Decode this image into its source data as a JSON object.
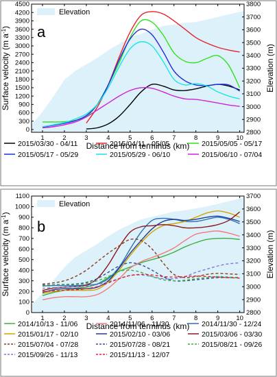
{
  "chart_data": [
    {
      "type": "line",
      "panel_label": "a",
      "xlabel": "Distance from terminus (km)",
      "ylabel_left": "Surface velocity (m a",
      "ylabel_left_sup": "-1",
      "ylabel_left_end": ")",
      "ylabel_right": "Elevation (m)",
      "xlim": [
        0.5,
        10.2
      ],
      "ylim": [
        -100,
        4500
      ],
      "ylim_right": [
        2800,
        3800
      ],
      "x_ticks": [
        1,
        2,
        3,
        4,
        5,
        6,
        7,
        8,
        9,
        10
      ],
      "y_ticks": [
        0,
        300,
        600,
        900,
        1200,
        1500,
        1800,
        2100,
        2400,
        2700,
        3000,
        3300,
        3600,
        3900,
        4200,
        4500
      ],
      "y_ticks_right": [
        2800,
        2900,
        3000,
        3100,
        3200,
        3300,
        3400,
        3500,
        3600,
        3700,
        3800
      ],
      "elevation": {
        "name": "Elevation",
        "color": "#ddf1fa",
        "x": [
          0.5,
          1,
          1.5,
          2,
          2.5,
          3,
          3.5,
          4,
          4.5,
          5,
          5.5,
          6,
          6.5,
          7,
          7.5,
          8,
          8.5,
          9,
          9.5,
          10,
          10.2
        ],
        "values": [
          2860,
          2960,
          3080,
          3210,
          3280,
          3330,
          3380,
          3440,
          3490,
          3540,
          3570,
          3600,
          3630,
          3640,
          3655,
          3660,
          3680,
          3700,
          3720,
          3740,
          3745
        ]
      },
      "series": [
        {
          "name": "2015/03/30 - 04/11",
          "color": "#000000",
          "x": [
            3,
            3.5,
            4,
            4.5,
            5,
            5.5,
            6,
            6.5,
            7,
            7.5,
            8,
            8.5,
            9,
            9.5,
            10
          ],
          "values": [
            20,
            60,
            200,
            480,
            900,
            1350,
            1620,
            1560,
            1420,
            1400,
            1460,
            1560,
            1620,
            1560,
            1420
          ]
        },
        {
          "name": "2015/04/11 - 05/05",
          "color": "#e8202a",
          "x": [
            3,
            3.5,
            4,
            4.5,
            5,
            5.5,
            6,
            6.5,
            7,
            7.5,
            8,
            8.5,
            9,
            9.5,
            10
          ],
          "values": [
            230,
            800,
            1600,
            2600,
            3500,
            4100,
            4230,
            4150,
            3900,
            3600,
            3300,
            3100,
            2950,
            2850,
            2780
          ]
        },
        {
          "name": "2015/05/05 - 05/17",
          "color": "#2fe11e",
          "x": [
            1,
            1.5,
            2,
            2.5,
            3,
            3.5,
            4,
            4.5,
            5,
            5.5,
            6,
            6.5,
            7,
            7.5,
            8,
            8.5,
            9,
            9.5,
            10
          ],
          "values": [
            270,
            270,
            280,
            330,
            460,
            900,
            1600,
            2400,
            3300,
            3900,
            3850,
            3400,
            2750,
            2450,
            2400,
            2550,
            2650,
            2300,
            1500
          ]
        },
        {
          "name": "2015/05/17 - 05/29",
          "color": "#1f2be5",
          "x": [
            1,
            1.5,
            2,
            2.5,
            3,
            3.5,
            4,
            4.5,
            5,
            5.5,
            6,
            6.5,
            7,
            7.5,
            8,
            8.5,
            9,
            9.5,
            10
          ],
          "values": [
            90,
            150,
            220,
            320,
            500,
            900,
            1600,
            2500,
            3250,
            3600,
            3400,
            2800,
            2100,
            1750,
            1600,
            1580,
            1620,
            1600,
            1380
          ]
        },
        {
          "name": "2015/05/29 - 06/10",
          "color": "#18e6e0",
          "x": [
            1,
            1.5,
            2,
            2.5,
            3,
            3.5,
            4,
            4.5,
            5,
            5.5,
            6,
            6.5,
            7,
            7.5,
            8,
            8.5,
            9,
            9.5,
            10
          ],
          "values": [
            100,
            170,
            250,
            380,
            560,
            900,
            1500,
            2250,
            2900,
            3150,
            3000,
            2450,
            1800,
            1600,
            1650,
            1560,
            1350,
            1200,
            1100
          ]
        },
        {
          "name": "2015/06/10 - 07/04",
          "color": "#d020d8",
          "x": [
            1,
            1.5,
            2,
            2.5,
            3,
            3.5,
            4,
            4.5,
            5,
            5.5,
            6,
            6.5,
            7,
            7.5,
            8,
            8.5,
            9,
            9.5,
            10
          ],
          "values": [
            60,
            100,
            170,
            270,
            450,
            700,
            950,
            1200,
            1400,
            1500,
            1480,
            1350,
            1200,
            1100,
            1080,
            1020,
            950,
            880,
            830
          ]
        }
      ]
    },
    {
      "type": "line",
      "panel_label": "b",
      "xlabel": "Distance from terminus (km)",
      "ylabel_left": "Surface velocity (m a",
      "ylabel_left_sup": "-1",
      "ylabel_left_end": ")",
      "ylabel_right": "Elevation (m)",
      "xlim": [
        0.5,
        10.2
      ],
      "ylim": [
        0,
        1100
      ],
      "ylim_right": [
        2800,
        3700
      ],
      "x_ticks": [
        1,
        2,
        3,
        4,
        5,
        6,
        7,
        8,
        9,
        10
      ],
      "y_ticks": [
        0,
        100,
        200,
        300,
        400,
        500,
        600,
        700,
        800,
        900,
        1000,
        1100
      ],
      "y_ticks_right": [
        2800,
        2900,
        3000,
        3100,
        3200,
        3300,
        3400,
        3500,
        3600,
        3700
      ],
      "elevation": {
        "name": "Elevation",
        "color": "#ddf1fa",
        "x": [
          0.5,
          1,
          1.5,
          2,
          2.5,
          3,
          3.5,
          4,
          4.5,
          5,
          5.5,
          6,
          6.5,
          7,
          7.5,
          8,
          8.5,
          9,
          9.5,
          10,
          10.2
        ],
        "values": [
          2860,
          2950,
          3050,
          3150,
          3230,
          3280,
          3330,
          3390,
          3440,
          3480,
          3520,
          3540,
          3560,
          3580,
          3590,
          3605,
          3620,
          3640,
          3660,
          3680,
          3690
        ]
      },
      "series": [
        {
          "name": "2014/10/13 - 11/06",
          "color": "#3fae3f",
          "dash": false,
          "x": [
            1,
            1.5,
            2,
            2.5,
            3,
            3.5,
            4,
            4.5,
            5,
            5.5,
            6,
            6.5,
            7,
            7.5,
            8,
            8.5,
            9,
            9.5,
            10
          ],
          "values": [
            160,
            190,
            210,
            230,
            240,
            270,
            330,
            390,
            430,
            470,
            500,
            530,
            570,
            620,
            660,
            690,
            700,
            700,
            690
          ]
        },
        {
          "name": "2014/11/06 - 11/30",
          "color": "#f07a7a",
          "dash": false,
          "x": [
            1,
            1.5,
            2,
            2.5,
            3,
            3.5,
            4,
            4.5,
            5,
            5.5,
            6,
            6.5,
            7,
            7.5,
            8,
            8.5,
            9,
            9.5,
            10
          ],
          "values": [
            120,
            140,
            150,
            150,
            150,
            170,
            230,
            320,
            420,
            480,
            520,
            560,
            610,
            680,
            740,
            760,
            770,
            750,
            720
          ]
        },
        {
          "name": "2014/11/30 - 12/24",
          "color": "#2b6fb8",
          "dash": false,
          "x": [
            1,
            1.5,
            2,
            2.5,
            3,
            3.5,
            4,
            4.5,
            5,
            5.5,
            6,
            6.5,
            7,
            7.5,
            8,
            8.5,
            9,
            9.5,
            10
          ],
          "values": [
            250,
            255,
            255,
            255,
            260,
            270,
            320,
            430,
            600,
            760,
            870,
            890,
            880,
            860,
            860,
            880,
            900,
            880,
            840
          ]
        },
        {
          "name": "2015/01/17 - 02/10",
          "color": "#d5a000",
          "dash": false,
          "x": [
            1,
            1.5,
            2,
            2.5,
            3,
            3.5,
            4,
            4.5,
            5,
            5.5,
            6,
            6.5,
            7,
            7.5,
            8,
            8.5,
            9,
            9.5,
            10
          ],
          "values": [
            180,
            200,
            210,
            210,
            210,
            220,
            290,
            400,
            540,
            660,
            760,
            820,
            840,
            860,
            900,
            940,
            960,
            940,
            900
          ]
        },
        {
          "name": "2015/02/10 - 03/06",
          "color": "#1e3d8f",
          "dash": false,
          "x": [
            1,
            1.5,
            2,
            2.5,
            3,
            3.5,
            4,
            4.5,
            5,
            5.5,
            6,
            6.5,
            7,
            7.5,
            8,
            8.5,
            9,
            9.5,
            10
          ],
          "values": [
            190,
            215,
            225,
            225,
            225,
            240,
            300,
            420,
            560,
            680,
            790,
            860,
            880,
            870,
            880,
            900,
            910,
            890,
            860
          ]
        },
        {
          "name": "2015/03/06 - 03/30",
          "color": "#8b1a1a",
          "dash": false,
          "x": [
            1,
            1.5,
            2,
            2.5,
            3,
            3.5,
            4,
            4.5,
            5,
            5.5,
            6,
            6.5,
            7,
            7.5,
            8,
            8.5,
            9,
            9.5,
            10
          ],
          "values": [
            210,
            230,
            240,
            245,
            260,
            320,
            450,
            620,
            760,
            810,
            820,
            830,
            820,
            800,
            800,
            810,
            830,
            870,
            950
          ]
        },
        {
          "name": "2015/07/04 - 07/28",
          "color": "#8b3a1a",
          "dash": true,
          "x": [
            1,
            1.5,
            2,
            2.5,
            3,
            3.5,
            4,
            4.5,
            5,
            5.5,
            6,
            6.5,
            7,
            7.5,
            8,
            8.5,
            9,
            9.5,
            10
          ],
          "values": [
            270,
            280,
            300,
            340,
            400,
            480,
            560,
            630,
            690,
            680,
            600,
            470,
            360,
            330,
            340,
            360,
            370,
            365,
            360
          ]
        },
        {
          "name": "2015/07/28 - 08/21",
          "color": "#2b4f9e",
          "dash": true,
          "x": [
            1,
            1.5,
            2,
            2.5,
            3,
            3.5,
            4,
            4.5,
            5,
            5.5,
            6,
            6.5,
            7,
            7.5,
            8,
            8.5,
            9,
            9.5,
            10
          ],
          "values": [
            260,
            262,
            265,
            270,
            285,
            320,
            380,
            440,
            470,
            450,
            400,
            340,
            300,
            300,
            310,
            320,
            330,
            330,
            330
          ]
        },
        {
          "name": "2015/08/21 - 09/26",
          "color": "#3fae3f",
          "dash": true,
          "x": [
            1,
            1.5,
            2,
            2.5,
            3,
            3.5,
            4,
            4.5,
            5,
            5.5,
            6,
            6.5,
            7,
            7.5,
            8,
            8.5,
            9,
            9.5,
            10
          ],
          "values": [
            255,
            258,
            260,
            265,
            275,
            300,
            340,
            390,
            400,
            380,
            340,
            310,
            300,
            305,
            320,
            330,
            340,
            335,
            330
          ]
        },
        {
          "name": "2015/09/26 - 11/13",
          "color": "#7a7ad8",
          "dash": true,
          "x": [
            1,
            1.5,
            2,
            2.5,
            3,
            3.5,
            4,
            4.5,
            5,
            5.5,
            6,
            6.5,
            7,
            7.5,
            8,
            8.5,
            9,
            9.5,
            10
          ],
          "values": [
            230,
            235,
            240,
            245,
            250,
            265,
            290,
            320,
            350,
            355,
            340,
            320,
            320,
            340,
            380,
            410,
            440,
            460,
            470
          ]
        },
        {
          "name": "2015/11/13 - 12/07",
          "color": "#e8202a",
          "dash": true,
          "x": [
            1,
            1.5,
            2,
            2.5,
            3,
            3.5,
            4,
            4.5,
            5,
            5.5,
            6,
            6.5,
            7,
            7.5,
            8,
            8.5,
            9,
            9.5,
            10
          ],
          "values": [
            200,
            205,
            210,
            215,
            225,
            245,
            280,
            320,
            350,
            360,
            355,
            340,
            335,
            340,
            345,
            340,
            335,
            330,
            325
          ]
        }
      ]
    }
  ]
}
